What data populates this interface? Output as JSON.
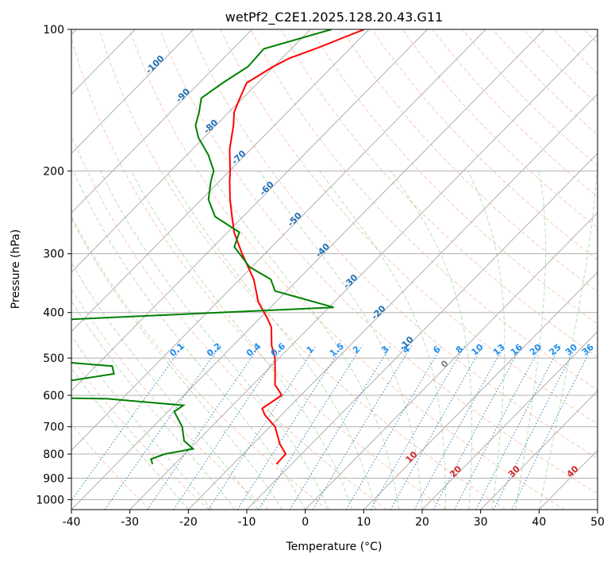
{
  "chart_data": {
    "type": "line",
    "title": "wetPf2_C2E1.2025.128.20.43.G11",
    "xlabel": "Temperature (°C)",
    "ylabel": "Pressure (hPa)",
    "xlim": [
      -40,
      50
    ],
    "ylim": [
      1050,
      100
    ],
    "y_scale": "log",
    "grid": true,
    "x_ticks": [
      -40,
      -30,
      -20,
      -10,
      0,
      10,
      20,
      30,
      40,
      50
    ],
    "y_ticks": [
      100,
      200,
      300,
      400,
      500,
      600,
      700,
      800,
      900,
      1000
    ],
    "skew": true,
    "isotherm_labels": [
      -100,
      -90,
      -80,
      -70,
      -60,
      -50,
      -40,
      -30,
      -20,
      -10,
      0,
      10,
      20,
      30,
      40
    ],
    "mixing_ratio_labels": [
      "0.1",
      "0.2",
      "0.4",
      "0.6",
      "1",
      "1.5",
      "2",
      "3",
      "4",
      "6",
      "8",
      "10",
      "13",
      "16",
      "20",
      "25",
      "30",
      "36"
    ],
    "series": [
      {
        "color": "#ff0000",
        "points": [
          {
            "p": 840,
            "t": -12.6
          },
          {
            "p": 800,
            "t": -12.7
          },
          {
            "p": 760,
            "t": -15.5
          },
          {
            "p": 700,
            "t": -19.1
          },
          {
            "p": 660,
            "t": -22.9
          },
          {
            "p": 640,
            "t": -24.4
          },
          {
            "p": 600,
            "t": -23.3
          },
          {
            "p": 590,
            "t": -24.2
          },
          {
            "p": 570,
            "t": -26.2
          },
          {
            "p": 550,
            "t": -27.4
          },
          {
            "p": 500,
            "t": -30.7
          },
          {
            "p": 470,
            "t": -33.4
          },
          {
            "p": 430,
            "t": -36.5
          },
          {
            "p": 410,
            "t": -38.9
          },
          {
            "p": 380,
            "t": -43.0
          },
          {
            "p": 340,
            "t": -47.6
          },
          {
            "p": 300,
            "t": -53.9
          },
          {
            "p": 270,
            "t": -58.9
          },
          {
            "p": 250,
            "t": -61.9
          },
          {
            "p": 230,
            "t": -65.1
          },
          {
            "p": 210,
            "t": -68.3
          },
          {
            "p": 200,
            "t": -69.9
          },
          {
            "p": 180,
            "t": -73.6
          },
          {
            "p": 160,
            "t": -77.0
          },
          {
            "p": 150,
            "t": -79.1
          },
          {
            "p": 140,
            "t": -80.5
          },
          {
            "p": 130,
            "t": -81.9
          },
          {
            "p": 120,
            "t": -80.1
          },
          {
            "p": 115,
            "t": -78.7
          },
          {
            "p": 110,
            "t": -75.9
          },
          {
            "p": 100,
            "t": -70.8
          }
        ]
      },
      {
        "color": "#008000",
        "points": [
          {
            "p": 840,
            "t": -33.8
          },
          {
            "p": 820,
            "t": -34.9
          },
          {
            "p": 800,
            "t": -33.4
          },
          {
            "p": 780,
            "t": -29.4
          },
          {
            "p": 750,
            "t": -32.3
          },
          {
            "p": 700,
            "t": -35.0
          },
          {
            "p": 650,
            "t": -38.9
          },
          {
            "p": 630,
            "t": -38.4
          },
          {
            "p": 610,
            "t": -52.7
          },
          {
            "p": 600,
            "t": -93.6
          },
          {
            "p": 590,
            "t": -97.2
          },
          {
            "p": 575,
            "t": -95.9
          },
          {
            "p": 560,
            "t": -62.5
          },
          {
            "p": 540,
            "t": -55.6
          },
          {
            "p": 520,
            "t": -57.2
          },
          {
            "p": 500,
            "t": -75.4
          },
          {
            "p": 480,
            "t": -87.4
          },
          {
            "p": 460,
            "t": -87.5
          },
          {
            "p": 440,
            "t": -86.2
          },
          {
            "p": 420,
            "t": -83.5
          },
          {
            "p": 390,
            "t": -29.2
          },
          {
            "p": 360,
            "t": -42.0
          },
          {
            "p": 340,
            "t": -44.7
          },
          {
            "p": 320,
            "t": -50.4
          },
          {
            "p": 290,
            "t": -56.4
          },
          {
            "p": 270,
            "t": -58.0
          },
          {
            "p": 250,
            "t": -64.8
          },
          {
            "p": 230,
            "t": -68.8
          },
          {
            "p": 210,
            "t": -71.5
          },
          {
            "p": 200,
            "t": -72.7
          },
          {
            "p": 185,
            "t": -76.3
          },
          {
            "p": 170,
            "t": -80.9
          },
          {
            "p": 160,
            "t": -83.5
          },
          {
            "p": 150,
            "t": -85.1
          },
          {
            "p": 140,
            "t": -87.1
          },
          {
            "p": 130,
            "t": -86.0
          },
          {
            "p": 120,
            "t": -84.4
          },
          {
            "p": 110,
            "t": -84.7
          },
          {
            "p": 100,
            "t": -76.4
          }
        ]
      }
    ]
  }
}
